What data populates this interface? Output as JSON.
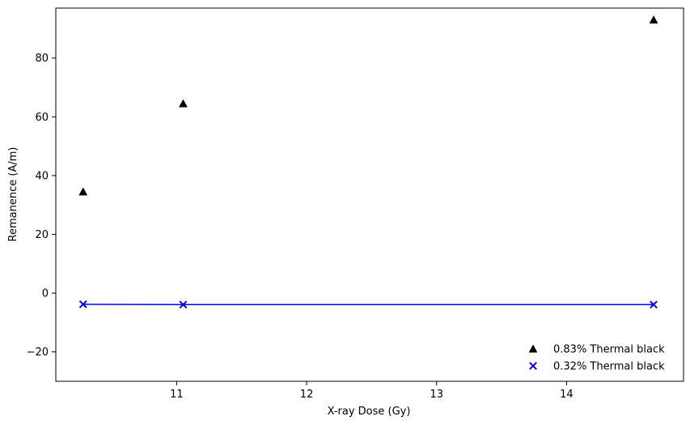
{
  "chart_data": {
    "type": "scatter",
    "title": "",
    "xlabel": "X-ray Dose (Gy)",
    "ylabel": "Remanence (A/m)",
    "xlim": [
      10.07,
      14.9
    ],
    "ylim": [
      -30,
      97
    ],
    "xticks": [
      11,
      12,
      13,
      14
    ],
    "yticks": [
      -20,
      0,
      20,
      40,
      60,
      80
    ],
    "grid": false,
    "legend_position": "lower-right",
    "series": [
      {
        "name": "0.83% Thermal black",
        "marker": "triangle",
        "color": "#000000",
        "line": false,
        "x": [
          10.28,
          11.05,
          14.67
        ],
        "y": [
          34.5,
          64.5,
          93.0
        ]
      },
      {
        "name": "0.32% Thermal black",
        "marker": "x",
        "color": "#0000ff",
        "line": true,
        "x": [
          10.28,
          11.05,
          14.67
        ],
        "y": [
          -3.8,
          -3.9,
          -3.9
        ]
      }
    ]
  }
}
